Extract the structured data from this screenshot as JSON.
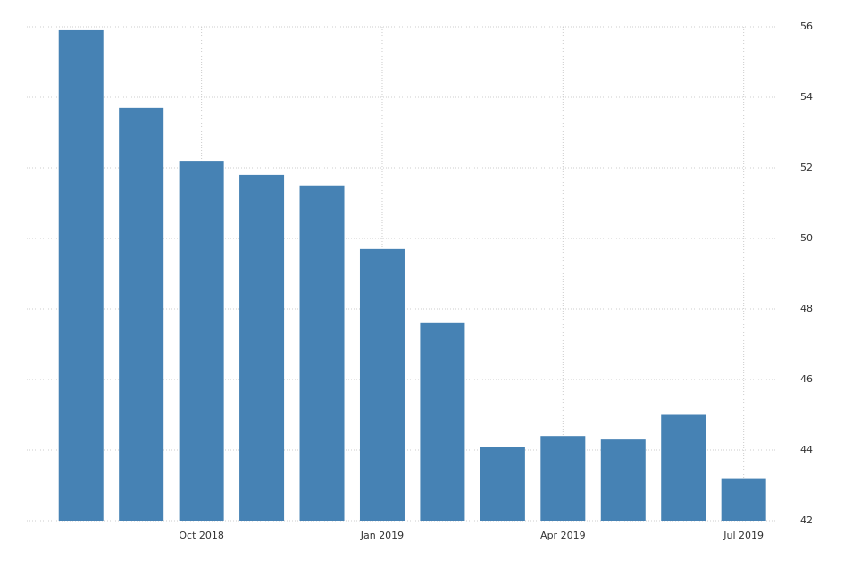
{
  "chart_data": {
    "type": "bar",
    "categories": [
      null,
      null,
      "Oct 2018",
      null,
      null,
      "Jan 2019",
      null,
      null,
      "Apr 2019",
      null,
      null,
      "Jul 2019"
    ],
    "values": [
      55.9,
      53.7,
      52.2,
      51.8,
      51.5,
      49.7,
      47.6,
      44.1,
      44.4,
      44.3,
      45.0,
      43.2
    ],
    "color": "#4682b4",
    "ylim": [
      42,
      56
    ],
    "yticks": [
      42,
      44,
      46,
      48,
      50,
      52,
      54,
      56
    ],
    "grid": true
  }
}
